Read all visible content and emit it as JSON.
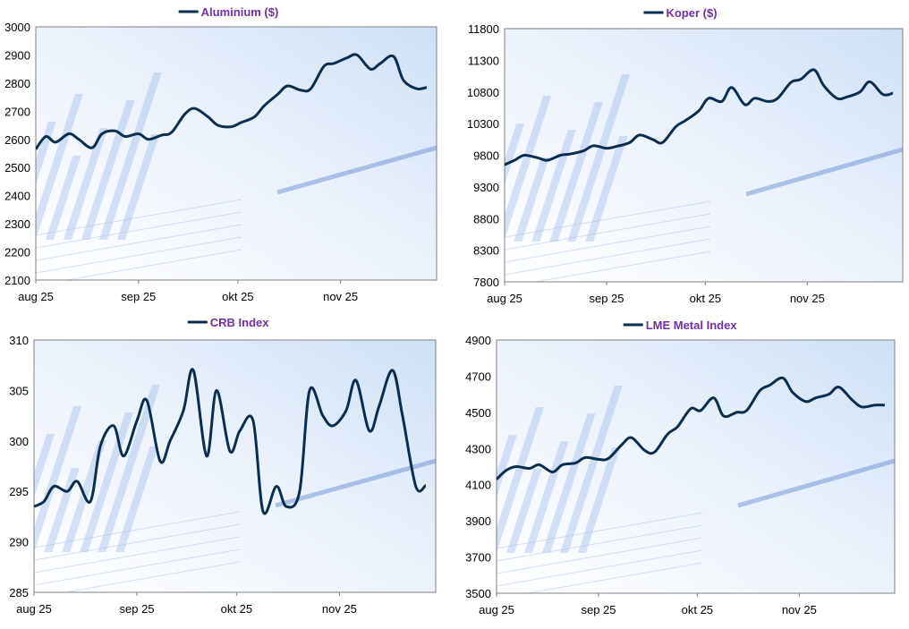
{
  "colors": {
    "line": "#0b2d4f",
    "title": "#7030a0",
    "frame": "#7f7f7f",
    "bg_light": "#ffffff",
    "bg_blue": "#cfe0f6"
  },
  "chart_data": [
    {
      "type": "line",
      "title": "Aluminium ($)",
      "series": [
        {
          "name": "Aluminium ($)",
          "x": [
            "2025-08-01",
            "2025-08-04",
            "2025-08-07",
            "2025-08-11",
            "2025-08-14",
            "2025-08-18",
            "2025-08-21",
            "2025-08-25",
            "2025-08-28",
            "2025-09-01",
            "2025-09-04",
            "2025-09-08",
            "2025-09-11",
            "2025-09-15",
            "2025-09-18",
            "2025-09-22",
            "2025-09-25",
            "2025-09-29",
            "2025-10-02",
            "2025-10-06",
            "2025-10-09",
            "2025-10-13",
            "2025-10-16",
            "2025-10-20",
            "2025-10-23",
            "2025-10-27",
            "2025-10-30",
            "2025-11-03",
            "2025-11-06",
            "2025-11-10",
            "2025-11-13",
            "2025-11-17",
            "2025-11-20",
            "2025-11-24",
            "2025-11-27"
          ],
          "y": [
            2565,
            2610,
            2590,
            2620,
            2600,
            2570,
            2620,
            2630,
            2610,
            2620,
            2600,
            2615,
            2625,
            2690,
            2710,
            2680,
            2650,
            2645,
            2660,
            2680,
            2720,
            2760,
            2790,
            2775,
            2780,
            2860,
            2870,
            2890,
            2900,
            2850,
            2870,
            2895,
            2810,
            2780,
            2785
          ]
        }
      ],
      "xticks": [
        "aug 25",
        "sep 25",
        "okt 25",
        "nov 25"
      ],
      "xtick_dates": [
        "2025-08-01",
        "2025-09-01",
        "2025-10-01",
        "2025-11-01"
      ],
      "x_range": [
        "2025-08-01",
        "2025-11-30"
      ],
      "ylim": [
        2100,
        3000
      ],
      "yticks": [
        2100,
        2200,
        2300,
        2400,
        2500,
        2600,
        2700,
        2800,
        2900,
        3000
      ],
      "legend": "top-center"
    },
    {
      "type": "line",
      "title": "Koper ($)",
      "series": [
        {
          "name": "Koper ($)",
          "x": [
            "2025-08-01",
            "2025-08-04",
            "2025-08-07",
            "2025-08-11",
            "2025-08-14",
            "2025-08-18",
            "2025-08-21",
            "2025-08-25",
            "2025-08-28",
            "2025-09-01",
            "2025-09-04",
            "2025-09-08",
            "2025-09-11",
            "2025-09-15",
            "2025-09-18",
            "2025-09-22",
            "2025-09-25",
            "2025-09-29",
            "2025-10-02",
            "2025-10-06",
            "2025-10-09",
            "2025-10-13",
            "2025-10-16",
            "2025-10-20",
            "2025-10-23",
            "2025-10-27",
            "2025-10-30",
            "2025-11-03",
            "2025-11-06",
            "2025-11-10",
            "2025-11-13",
            "2025-11-17",
            "2025-11-20",
            "2025-11-24",
            "2025-11-27"
          ],
          "y": [
            9650,
            9720,
            9800,
            9760,
            9720,
            9800,
            9820,
            9870,
            9950,
            9910,
            9940,
            10000,
            10120,
            10050,
            10000,
            10250,
            10350,
            10500,
            10700,
            10650,
            10870,
            10600,
            10700,
            10650,
            10700,
            10950,
            11000,
            11150,
            10900,
            10700,
            10720,
            10800,
            10960,
            10760,
            10780
          ]
        }
      ],
      "xticks": [
        "aug 25",
        "sep 25",
        "okt 25",
        "nov 25"
      ],
      "xtick_dates": [
        "2025-08-01",
        "2025-09-01",
        "2025-10-01",
        "2025-11-01"
      ],
      "x_range": [
        "2025-08-01",
        "2025-11-30"
      ],
      "ylim": [
        7800,
        11800
      ],
      "yticks": [
        7800,
        8300,
        8800,
        9300,
        9800,
        10300,
        10800,
        11300,
        11800
      ],
      "legend": "top-center"
    },
    {
      "type": "line",
      "title": "CRB Index",
      "series": [
        {
          "name": "CRB Index",
          "x": [
            "2025-08-01",
            "2025-08-04",
            "2025-08-07",
            "2025-08-11",
            "2025-08-14",
            "2025-08-18",
            "2025-08-21",
            "2025-08-25",
            "2025-08-28",
            "2025-09-01",
            "2025-09-04",
            "2025-09-08",
            "2025-09-11",
            "2025-09-15",
            "2025-09-18",
            "2025-09-22",
            "2025-09-25",
            "2025-09-29",
            "2025-10-02",
            "2025-10-06",
            "2025-10-09",
            "2025-10-13",
            "2025-10-16",
            "2025-10-20",
            "2025-10-23",
            "2025-10-27",
            "2025-10-30",
            "2025-11-03",
            "2025-11-06",
            "2025-11-10",
            "2025-11-13",
            "2025-11-17",
            "2025-11-20",
            "2025-11-24",
            "2025-11-27"
          ],
          "y": [
            293.5,
            294.0,
            295.5,
            295.0,
            296.0,
            294.0,
            299.5,
            301.5,
            298.5,
            302.0,
            304.0,
            298.0,
            300.0,
            303.0,
            307.0,
            298.5,
            305.0,
            299.0,
            301.0,
            302.0,
            293.0,
            295.5,
            293.5,
            295.0,
            305.0,
            302.5,
            301.5,
            303.0,
            306.0,
            301.0,
            303.5,
            307.0,
            302.5,
            295.5,
            295.6
          ]
        }
      ],
      "xticks": [
        "aug 25",
        "sep 25",
        "okt 25",
        "nov 25"
      ],
      "xtick_dates": [
        "2025-08-01",
        "2025-09-01",
        "2025-10-01",
        "2025-11-01"
      ],
      "x_range": [
        "2025-08-01",
        "2025-11-30"
      ],
      "ylim": [
        285,
        310
      ],
      "yticks": [
        285,
        290,
        295,
        300,
        305,
        310
      ],
      "legend": "top-center"
    },
    {
      "type": "line",
      "title": "LME Metal Index",
      "series": [
        {
          "name": "LME Metal Index",
          "x": [
            "2025-08-01",
            "2025-08-04",
            "2025-08-07",
            "2025-08-11",
            "2025-08-14",
            "2025-08-18",
            "2025-08-21",
            "2025-08-25",
            "2025-08-28",
            "2025-09-01",
            "2025-09-04",
            "2025-09-08",
            "2025-09-11",
            "2025-09-15",
            "2025-09-18",
            "2025-09-22",
            "2025-09-25",
            "2025-09-29",
            "2025-10-02",
            "2025-10-06",
            "2025-10-09",
            "2025-10-13",
            "2025-10-16",
            "2025-10-20",
            "2025-10-23",
            "2025-10-27",
            "2025-10-30",
            "2025-11-03",
            "2025-11-06",
            "2025-11-10",
            "2025-11-13",
            "2025-11-17",
            "2025-11-20",
            "2025-11-24",
            "2025-11-27"
          ],
          "y": [
            4130,
            4180,
            4200,
            4190,
            4210,
            4170,
            4210,
            4220,
            4250,
            4240,
            4245,
            4320,
            4360,
            4290,
            4280,
            4380,
            4420,
            4520,
            4510,
            4580,
            4480,
            4500,
            4510,
            4620,
            4650,
            4690,
            4610,
            4560,
            4580,
            4600,
            4640,
            4570,
            4530,
            4540,
            4540
          ]
        }
      ],
      "xticks": [
        "aug 25",
        "sep 25",
        "okt 25",
        "nov 25"
      ],
      "xtick_dates": [
        "2025-08-01",
        "2025-09-01",
        "2025-10-01",
        "2025-11-01"
      ],
      "x_range": [
        "2025-08-01",
        "2025-11-30"
      ],
      "ylim": [
        3500,
        4900
      ],
      "yticks": [
        3500,
        3700,
        3900,
        4100,
        4300,
        4500,
        4700,
        4900
      ],
      "legend": "top-center"
    }
  ]
}
